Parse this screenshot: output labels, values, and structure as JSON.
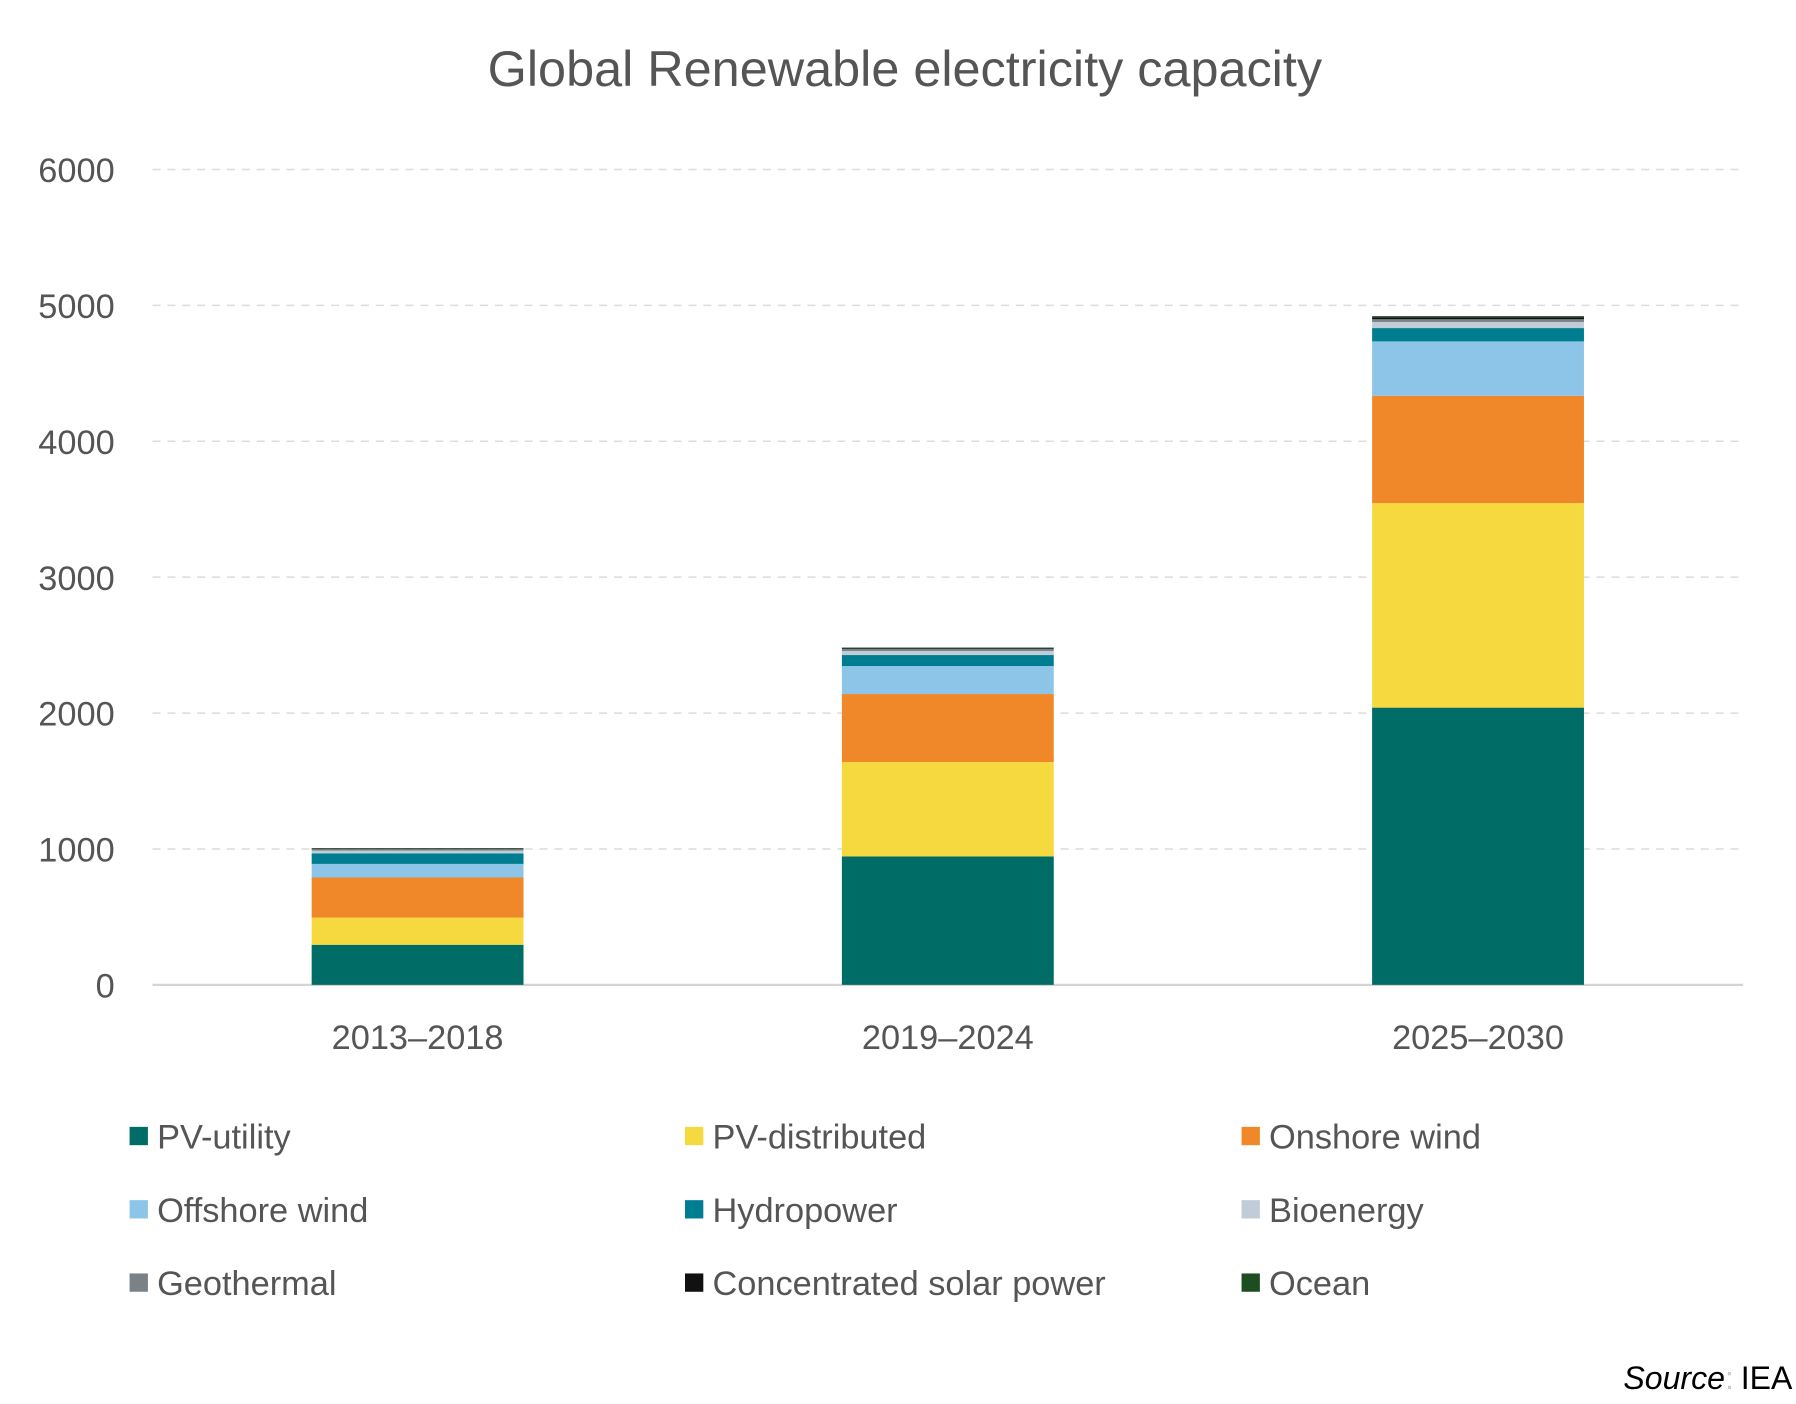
{
  "chart_data": {
    "type": "bar",
    "stacked": true,
    "title": "Global Renewable electricity capacity",
    "xlabel": "",
    "ylabel": "",
    "ylim": [
      0,
      6000
    ],
    "yticks": [
      "0",
      "1000",
      "2000",
      "3000",
      "4000",
      "5000",
      "6000"
    ],
    "grid": true,
    "legend_position": "bottom",
    "categories": [
      "2013–2018",
      "2019–2024",
      "2025–2030"
    ],
    "series": [
      {
        "name": "PV-utility",
        "color": "#006c66",
        "values": [
          295,
          945,
          2040
        ]
      },
      {
        "name": "PV-distributed",
        "color": "#f5d93f",
        "values": [
          200,
          695,
          1505
        ]
      },
      {
        "name": "Onshore wind",
        "color": "#f0882a",
        "values": [
          295,
          500,
          790
        ]
      },
      {
        "name": "Offshore wind",
        "color": "#8dc5e8",
        "values": [
          100,
          206,
          400
        ]
      },
      {
        "name": "Hydropower",
        "color": "#007e91",
        "values": [
          78,
          81,
          98
        ]
      },
      {
        "name": "Bioenergy",
        "color": "#c0ccd8",
        "values": [
          20,
          30,
          45
        ]
      },
      {
        "name": "Geothermal",
        "color": "#7a8287",
        "values": [
          10,
          15,
          20
        ]
      },
      {
        "name": "Concentrated solar power",
        "color": "#111111",
        "values": [
          5,
          6,
          15
        ]
      },
      {
        "name": "Ocean",
        "color": "#1e4d22",
        "values": [
          3,
          4,
          8
        ]
      }
    ]
  },
  "source": {
    "label": "Source",
    "separator": ":",
    "value": "IEA"
  }
}
